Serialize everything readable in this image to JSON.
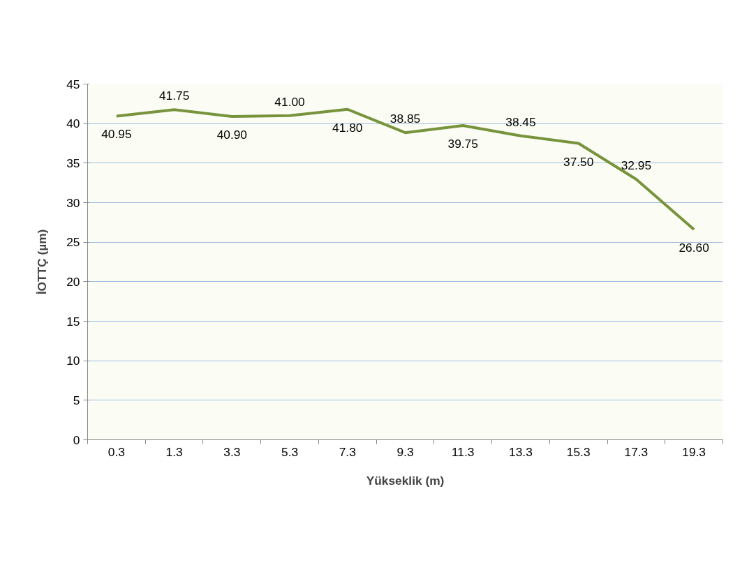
{
  "chart_data": {
    "type": "line",
    "xlabel": "Yükseklik (m)",
    "ylabel": "İOTTÇ (µm)",
    "categories": [
      "0.3",
      "1.3",
      "3.3",
      "5.3",
      "7.3",
      "9.3",
      "11.3",
      "13.3",
      "15.3",
      "17.3",
      "19.3"
    ],
    "series": [
      {
        "color": "#77933c",
        "values": [
          40.95,
          41.75,
          40.9,
          41.0,
          41.8,
          38.85,
          39.75,
          38.45,
          37.5,
          32.95,
          26.6
        ]
      }
    ],
    "value_labels": [
      "40.95",
      "41.75",
      "40.90",
      "41.00",
      "41.80",
      "38.85",
      "39.75",
      "38.45",
      "37.50",
      "32.95",
      "26.60"
    ],
    "ylim": [
      0,
      45
    ],
    "yticks": [
      0,
      5,
      10,
      15,
      20,
      25,
      30,
      35,
      40,
      45
    ],
    "grid": "y",
    "marker": "none",
    "line_style": "solid"
  }
}
